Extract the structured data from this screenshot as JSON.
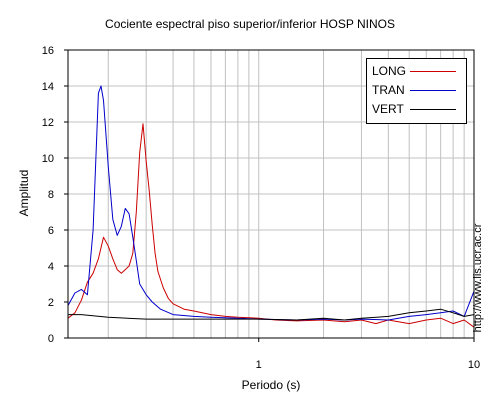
{
  "chart_data": {
    "type": "line",
    "title": "Cociente espectral piso superior/inferior  HOSP NINOS",
    "xlabel": "Periodo (s)",
    "ylabel": "Amplitud",
    "xscale": "log",
    "xlim": [
      0.13,
      10
    ],
    "ylim": [
      0,
      16
    ],
    "x_ticks": [
      1,
      10
    ],
    "x_tick_labels": [
      "1",
      "10"
    ],
    "y_ticks": [
      0,
      2,
      4,
      6,
      8,
      10,
      12,
      14,
      16
    ],
    "y_tick_labels": [
      "0",
      "2",
      "4",
      "6",
      "8",
      "10",
      "12",
      "14",
      "16"
    ],
    "grid": true,
    "legend_position": "top-right",
    "series": [
      {
        "name": "LONG",
        "color": "#cc0000",
        "x": [
          0.13,
          0.14,
          0.15,
          0.16,
          0.17,
          0.18,
          0.19,
          0.2,
          0.21,
          0.22,
          0.23,
          0.24,
          0.25,
          0.26,
          0.27,
          0.28,
          0.29,
          0.3,
          0.31,
          0.32,
          0.33,
          0.34,
          0.36,
          0.38,
          0.4,
          0.45,
          0.5,
          0.6,
          0.7,
          0.8,
          1.0,
          1.2,
          1.5,
          2.0,
          2.5,
          3.0,
          3.5,
          4.0,
          5.0,
          6.0,
          7.0,
          8.0,
          9.0,
          10.0
        ],
        "y": [
          1.1,
          1.4,
          2.1,
          3.1,
          3.6,
          4.4,
          5.6,
          5.1,
          4.4,
          3.8,
          3.6,
          3.8,
          4.0,
          4.7,
          7.0,
          10.3,
          11.9,
          9.8,
          8.2,
          6.3,
          4.7,
          3.7,
          2.8,
          2.2,
          1.9,
          1.6,
          1.5,
          1.3,
          1.2,
          1.15,
          1.1,
          1.0,
          0.95,
          1.0,
          0.9,
          1.0,
          0.8,
          1.0,
          0.8,
          1.0,
          1.1,
          0.8,
          1.0,
          0.6
        ]
      },
      {
        "name": "TRAN",
        "color": "#0000cc",
        "x": [
          0.13,
          0.14,
          0.15,
          0.16,
          0.17,
          0.18,
          0.185,
          0.19,
          0.2,
          0.21,
          0.22,
          0.23,
          0.24,
          0.25,
          0.26,
          0.27,
          0.28,
          0.3,
          0.32,
          0.35,
          0.4,
          0.5,
          0.6,
          0.8,
          1.0,
          1.5,
          2.0,
          2.5,
          3.0,
          4.0,
          5.0,
          6.0,
          7.0,
          8.0,
          9.0,
          10.0
        ],
        "y": [
          1.8,
          2.5,
          2.7,
          2.4,
          6.0,
          13.6,
          14.0,
          13.2,
          9.5,
          6.6,
          5.7,
          6.2,
          7.2,
          6.9,
          5.6,
          4.3,
          3.0,
          2.4,
          2.0,
          1.6,
          1.3,
          1.2,
          1.15,
          1.1,
          1.05,
          1.0,
          1.05,
          1.0,
          1.05,
          1.0,
          1.2,
          1.3,
          1.4,
          1.5,
          1.2,
          2.6
        ]
      },
      {
        "name": "VERT",
        "color": "#000000",
        "x": [
          0.13,
          0.15,
          0.2,
          0.3,
          0.5,
          0.8,
          1.0,
          1.5,
          2.0,
          2.5,
          3.0,
          4.0,
          5.0,
          6.0,
          7.0,
          8.0,
          9.0,
          10.0
        ],
        "y": [
          1.3,
          1.3,
          1.15,
          1.05,
          1.05,
          1.05,
          1.05,
          1.0,
          1.1,
          1.0,
          1.1,
          1.2,
          1.4,
          1.5,
          1.6,
          1.4,
          1.2,
          1.3
        ]
      }
    ]
  },
  "credit": "http://www.lis.ucr.ac.cr"
}
